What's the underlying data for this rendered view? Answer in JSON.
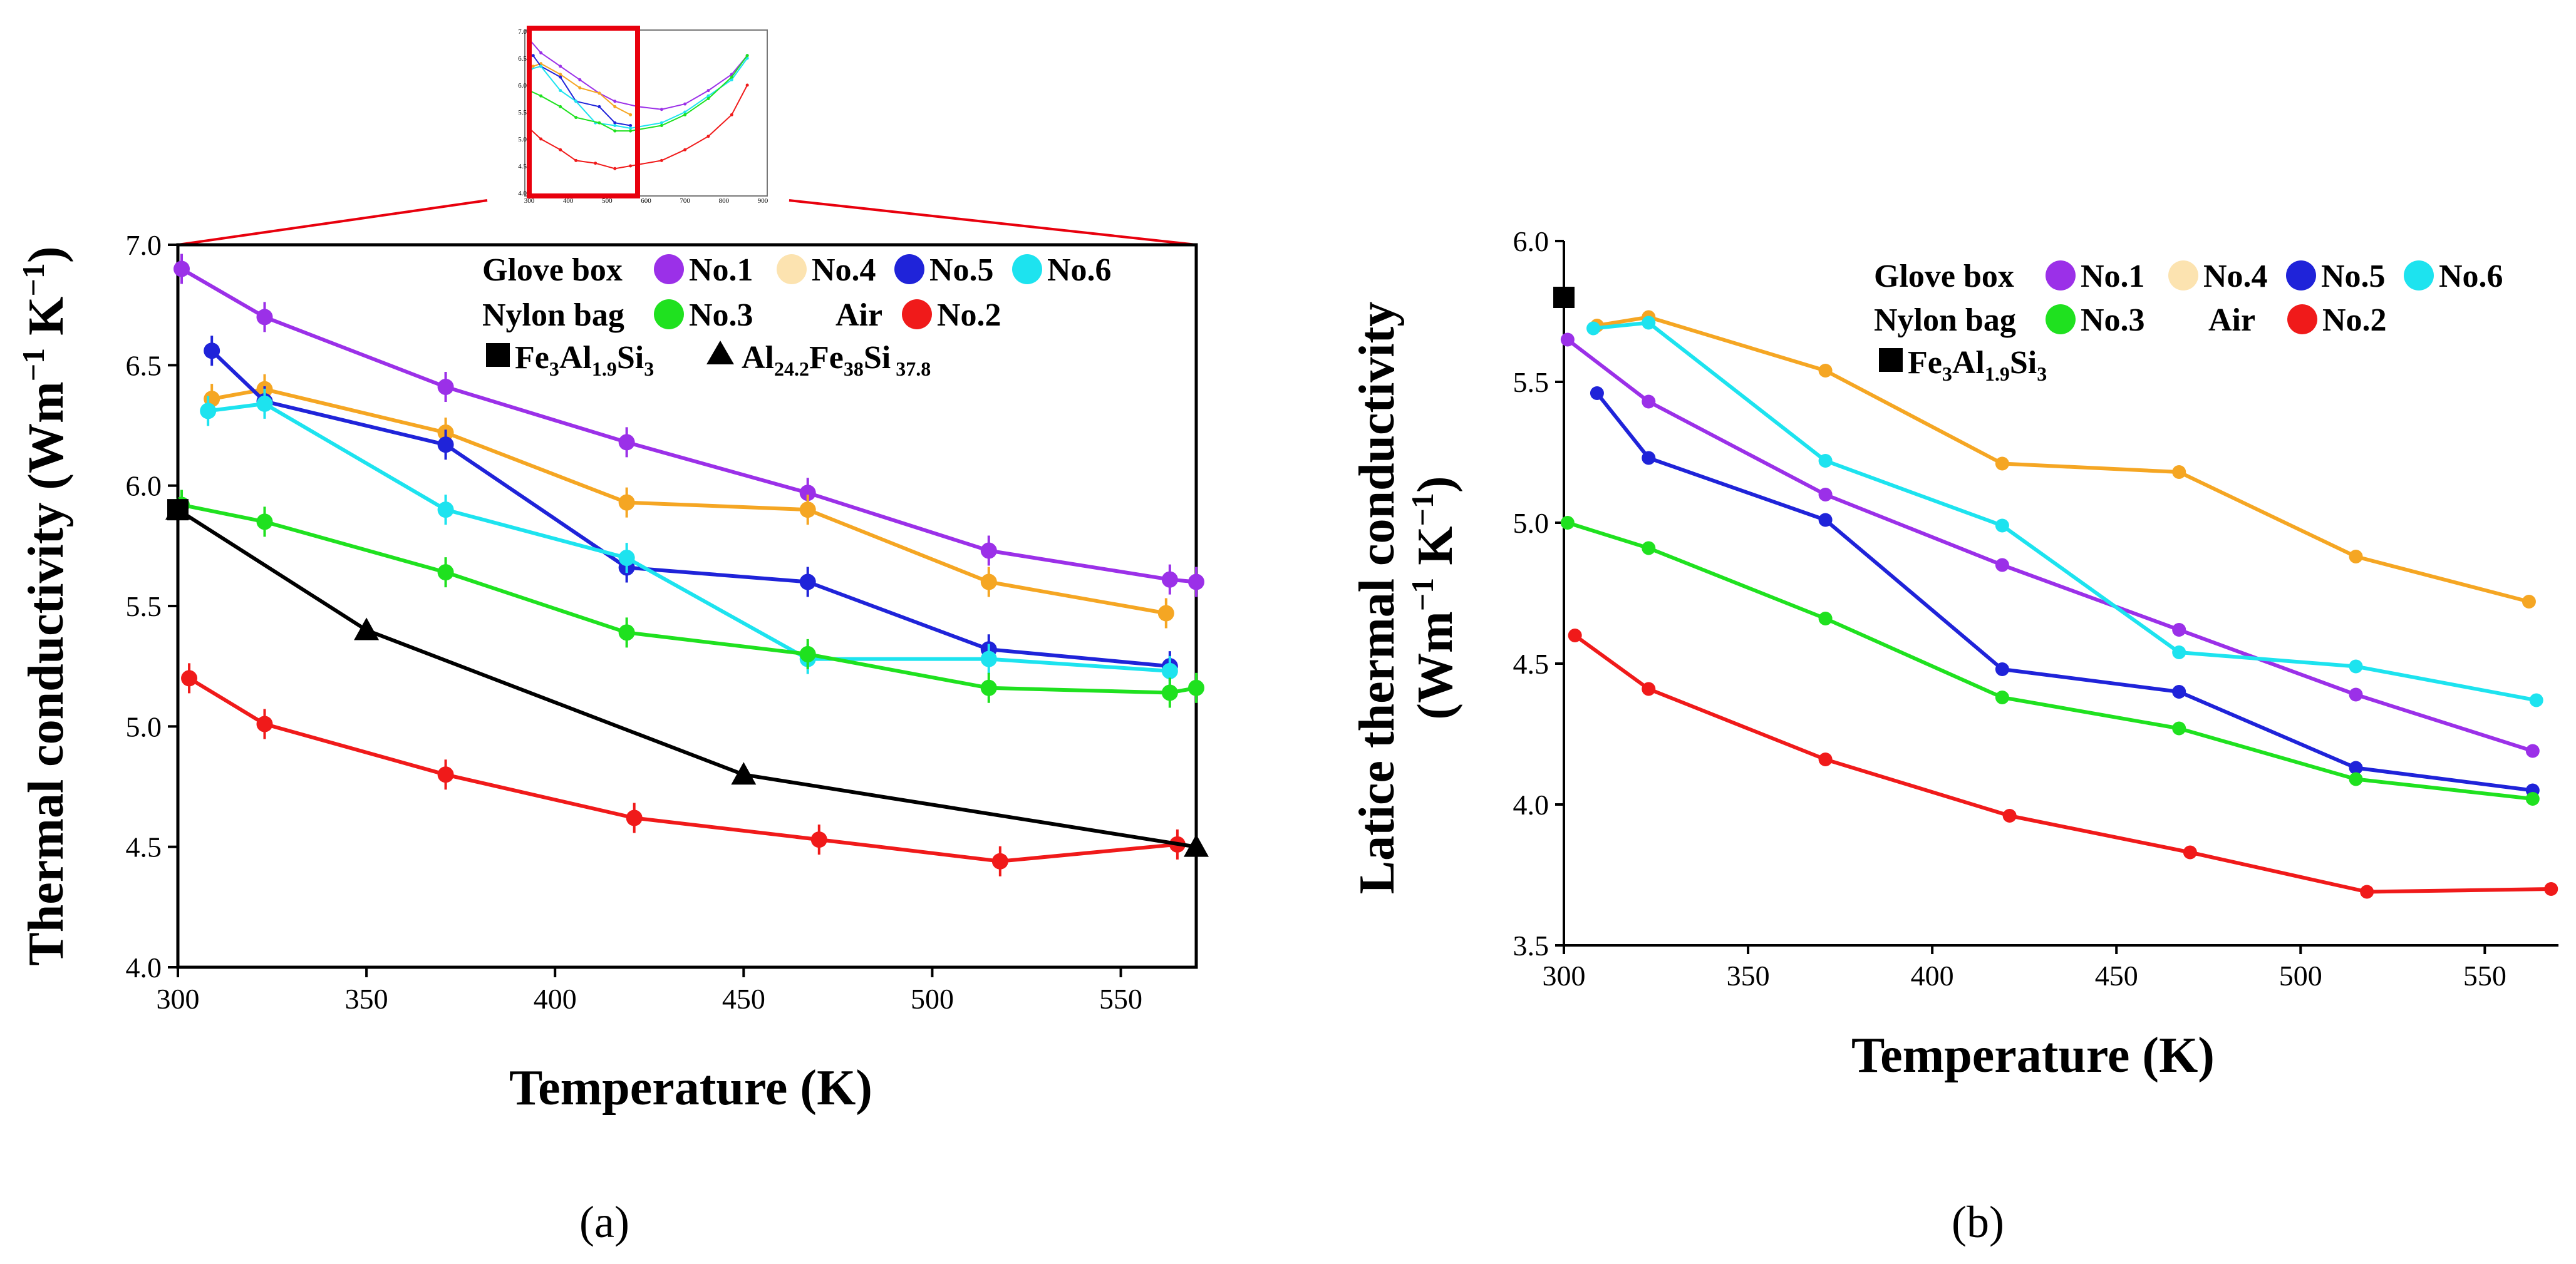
{
  "colors": {
    "no1": "#9b30e8",
    "no4": "#f5a623",
    "no4_marker": "#fce3b0",
    "no5": "#1f23d9",
    "no6": "#1de3ef",
    "no3": "#1fe11f",
    "no2": "#f01a1a",
    "ref": "#000000",
    "zoom": "#e8000d"
  },
  "inset": {
    "x_ticks": [
      "300",
      "400",
      "500",
      "600",
      "700",
      "800",
      "900"
    ],
    "y_ticks": [
      "4.0",
      "4.5",
      "5.0",
      "5.5",
      "6.0",
      "6.5",
      "7.0"
    ],
    "series": [
      {
        "key": "no1",
        "x": [
          300,
          330,
          380,
          430,
          480,
          520,
          580,
          640,
          700,
          760,
          820,
          860
        ],
        "y": [
          6.85,
          6.6,
          6.35,
          6.1,
          5.85,
          5.7,
          5.6,
          5.55,
          5.65,
          5.9,
          6.2,
          6.55
        ]
      },
      {
        "key": "no4",
        "x": [
          310,
          330,
          380,
          430,
          480,
          520,
          560
        ],
        "y": [
          6.35,
          6.4,
          6.2,
          5.95,
          5.85,
          5.6,
          5.45
        ]
      },
      {
        "key": "no5",
        "x": [
          310,
          330,
          380,
          420,
          480,
          520,
          560
        ],
        "y": [
          6.55,
          6.35,
          6.15,
          5.7,
          5.6,
          5.3,
          5.25
        ]
      },
      {
        "key": "no6",
        "x": [
          305,
          330,
          380,
          420,
          470,
          520,
          560,
          640,
          700,
          760,
          820,
          860
        ],
        "y": [
          6.3,
          6.35,
          5.9,
          5.7,
          5.3,
          5.25,
          5.2,
          5.3,
          5.5,
          5.8,
          6.1,
          6.5
        ]
      },
      {
        "key": "no3",
        "x": [
          300,
          330,
          380,
          420,
          480,
          520,
          560,
          640,
          700,
          760,
          820,
          860
        ],
        "y": [
          5.9,
          5.8,
          5.6,
          5.4,
          5.3,
          5.15,
          5.15,
          5.25,
          5.45,
          5.75,
          6.15,
          6.55
        ]
      },
      {
        "key": "no2",
        "x": [
          300,
          330,
          380,
          420,
          470,
          520,
          560,
          640,
          700,
          760,
          820,
          860
        ],
        "y": [
          5.2,
          5.0,
          4.8,
          4.6,
          4.55,
          4.45,
          4.5,
          4.6,
          4.8,
          5.05,
          5.45,
          6.0
        ]
      }
    ]
  },
  "chart_data": [
    {
      "type": "line",
      "panel": "(a)",
      "xlabel": "Temperature (K)",
      "ylabel": "Thermal conductivity (Wm⁻¹ K⁻¹)",
      "ylabel_parts": {
        "main": "Thermal conductivity (Wm",
        "sup1": "−1",
        "mid": " K",
        "sup2": "−1",
        "end": ")"
      },
      "xlim": [
        300,
        570
      ],
      "ylim": [
        4.0,
        7.0
      ],
      "x_ticks": [
        "300",
        "350",
        "400",
        "450",
        "500",
        "550"
      ],
      "y_ticks": [
        "4.0",
        "4.5",
        "5.0",
        "5.5",
        "6.0",
        "6.5",
        "7.0"
      ],
      "legend": {
        "groups": [
          {
            "label": "Glove box",
            "entries": [
              {
                "key": "no1",
                "label": "No.1"
              },
              {
                "key": "no4",
                "label": "No.4"
              },
              {
                "key": "no5",
                "label": "No.5"
              },
              {
                "key": "no6",
                "label": "No.6"
              }
            ]
          },
          {
            "label": "Nylon bag",
            "entries": [
              {
                "key": "no3",
                "label": "No.3"
              }
            ]
          },
          {
            "label": "Air",
            "entries": [
              {
                "key": "no2",
                "label": "No.2"
              }
            ]
          }
        ],
        "ref1": {
          "base": "Fe",
          "sub1": "3",
          "mid": "Al",
          "sub2": "1.9",
          "mid2": "Si",
          "sub3": "3"
        },
        "ref2": {
          "base": "Al",
          "sub1": "24.2",
          "mid": "Fe",
          "sub2": "38",
          "mid2": "Si",
          "sub3": " 37.8"
        }
      },
      "series": [
        {
          "key": "no1",
          "name": "No.1",
          "x": [
            301,
            323,
            371,
            419,
            467,
            515,
            563,
            570
          ],
          "y": [
            6.9,
            6.7,
            6.41,
            6.18,
            5.97,
            5.73,
            5.61,
            5.6
          ]
        },
        {
          "key": "no4",
          "name": "No.4",
          "x": [
            309,
            323,
            371,
            419,
            467,
            515,
            562
          ],
          "y": [
            6.36,
            6.4,
            6.22,
            5.93,
            5.9,
            5.6,
            5.47
          ]
        },
        {
          "key": "no5",
          "name": "No.5",
          "x": [
            309,
            323,
            371,
            419,
            467,
            515,
            563
          ],
          "y": [
            6.56,
            6.35,
            6.17,
            5.66,
            5.6,
            5.32,
            5.25
          ]
        },
        {
          "key": "no6",
          "name": "No.6",
          "x": [
            308,
            323,
            371,
            419,
            467,
            515,
            563
          ],
          "y": [
            6.31,
            6.34,
            5.9,
            5.7,
            5.28,
            5.28,
            5.23
          ]
        },
        {
          "key": "no3",
          "name": "No.3",
          "x": [
            301,
            323,
            371,
            419,
            467,
            515,
            563,
            570
          ],
          "y": [
            5.92,
            5.85,
            5.64,
            5.39,
            5.3,
            5.16,
            5.14,
            5.16
          ]
        },
        {
          "key": "no2",
          "name": "No.2",
          "x": [
            303,
            323,
            371,
            421,
            470,
            518,
            565
          ],
          "y": [
            5.2,
            5.01,
            4.8,
            4.62,
            4.53,
            4.44,
            4.51
          ]
        },
        {
          "key": "ref",
          "name": "Al24.2Fe38Si37.8",
          "marker": "triangle",
          "x": [
            300,
            350,
            450,
            570
          ],
          "y": [
            5.9,
            5.4,
            4.8,
            4.5
          ]
        },
        {
          "key": "ref",
          "name": "Fe3Al1.9Si3",
          "marker": "square",
          "x": [
            300
          ],
          "y": [
            5.9
          ]
        }
      ]
    },
    {
      "type": "line",
      "panel": "(b)",
      "xlabel": "Temperature (K)",
      "ylabel_line1": "Latice thermal conductivity",
      "ylabel_parts": {
        "main": "(Wm",
        "sup1": "−1",
        "mid": " K",
        "sup2": "−1",
        "end": ")"
      },
      "xlim": [
        300,
        570
      ],
      "ylim": [
        3.5,
        6.0
      ],
      "x_ticks": [
        "300",
        "350",
        "400",
        "450",
        "500",
        "550"
      ],
      "y_ticks": [
        "3.5",
        "4.0",
        "4.5",
        "5.0",
        "5.5",
        "6.0"
      ],
      "legend": {
        "groups": [
          {
            "label": "Glove box",
            "entries": [
              {
                "key": "no1",
                "label": "No.1"
              },
              {
                "key": "no4",
                "label": "No.4"
              },
              {
                "key": "no5",
                "label": "No.5"
              },
              {
                "key": "no6",
                "label": "No.6"
              }
            ]
          },
          {
            "label": "Nylon bag",
            "entries": [
              {
                "key": "no3",
                "label": "No.3"
              }
            ]
          },
          {
            "label": "Air",
            "entries": [
              {
                "key": "no2",
                "label": "No.2"
              }
            ]
          }
        ],
        "ref1": {
          "base": "Fe",
          "sub1": "3",
          "mid": "Al",
          "sub2": "1.9",
          "mid2": "Si",
          "sub3": "3"
        }
      },
      "series": [
        {
          "key": "no1",
          "name": "No.1",
          "x": [
            301,
            323,
            371,
            419,
            467,
            515,
            563
          ],
          "y": [
            5.65,
            5.43,
            5.1,
            4.85,
            4.62,
            4.39,
            4.19
          ]
        },
        {
          "key": "no4",
          "name": "No.4",
          "x": [
            309,
            323,
            371,
            419,
            467,
            515,
            562
          ],
          "y": [
            5.7,
            5.73,
            5.54,
            5.21,
            5.18,
            4.88,
            4.72
          ]
        },
        {
          "key": "no5",
          "name": "No.5",
          "x": [
            309,
            323,
            371,
            419,
            467,
            515,
            563
          ],
          "y": [
            5.46,
            5.23,
            5.01,
            4.48,
            4.4,
            4.13,
            4.05
          ]
        },
        {
          "key": "no6",
          "name": "No.6",
          "x": [
            308,
            323,
            371,
            419,
            467,
            515,
            564
          ],
          "y": [
            5.69,
            5.71,
            5.22,
            4.99,
            4.54,
            4.49,
            4.37
          ]
        },
        {
          "key": "no3",
          "name": "No.3",
          "x": [
            301,
            323,
            371,
            419,
            467,
            515,
            563
          ],
          "y": [
            5.0,
            4.91,
            4.66,
            4.38,
            4.27,
            4.09,
            4.02
          ]
        },
        {
          "key": "no2",
          "name": "No.2",
          "x": [
            303,
            323,
            371,
            421,
            470,
            518,
            568
          ],
          "y": [
            4.6,
            4.41,
            4.16,
            3.96,
            3.83,
            3.69,
            3.7
          ]
        },
        {
          "key": "ref",
          "name": "Fe3Al1.9Si3",
          "marker": "square",
          "x": [
            300
          ],
          "y": [
            5.8
          ]
        }
      ]
    }
  ]
}
